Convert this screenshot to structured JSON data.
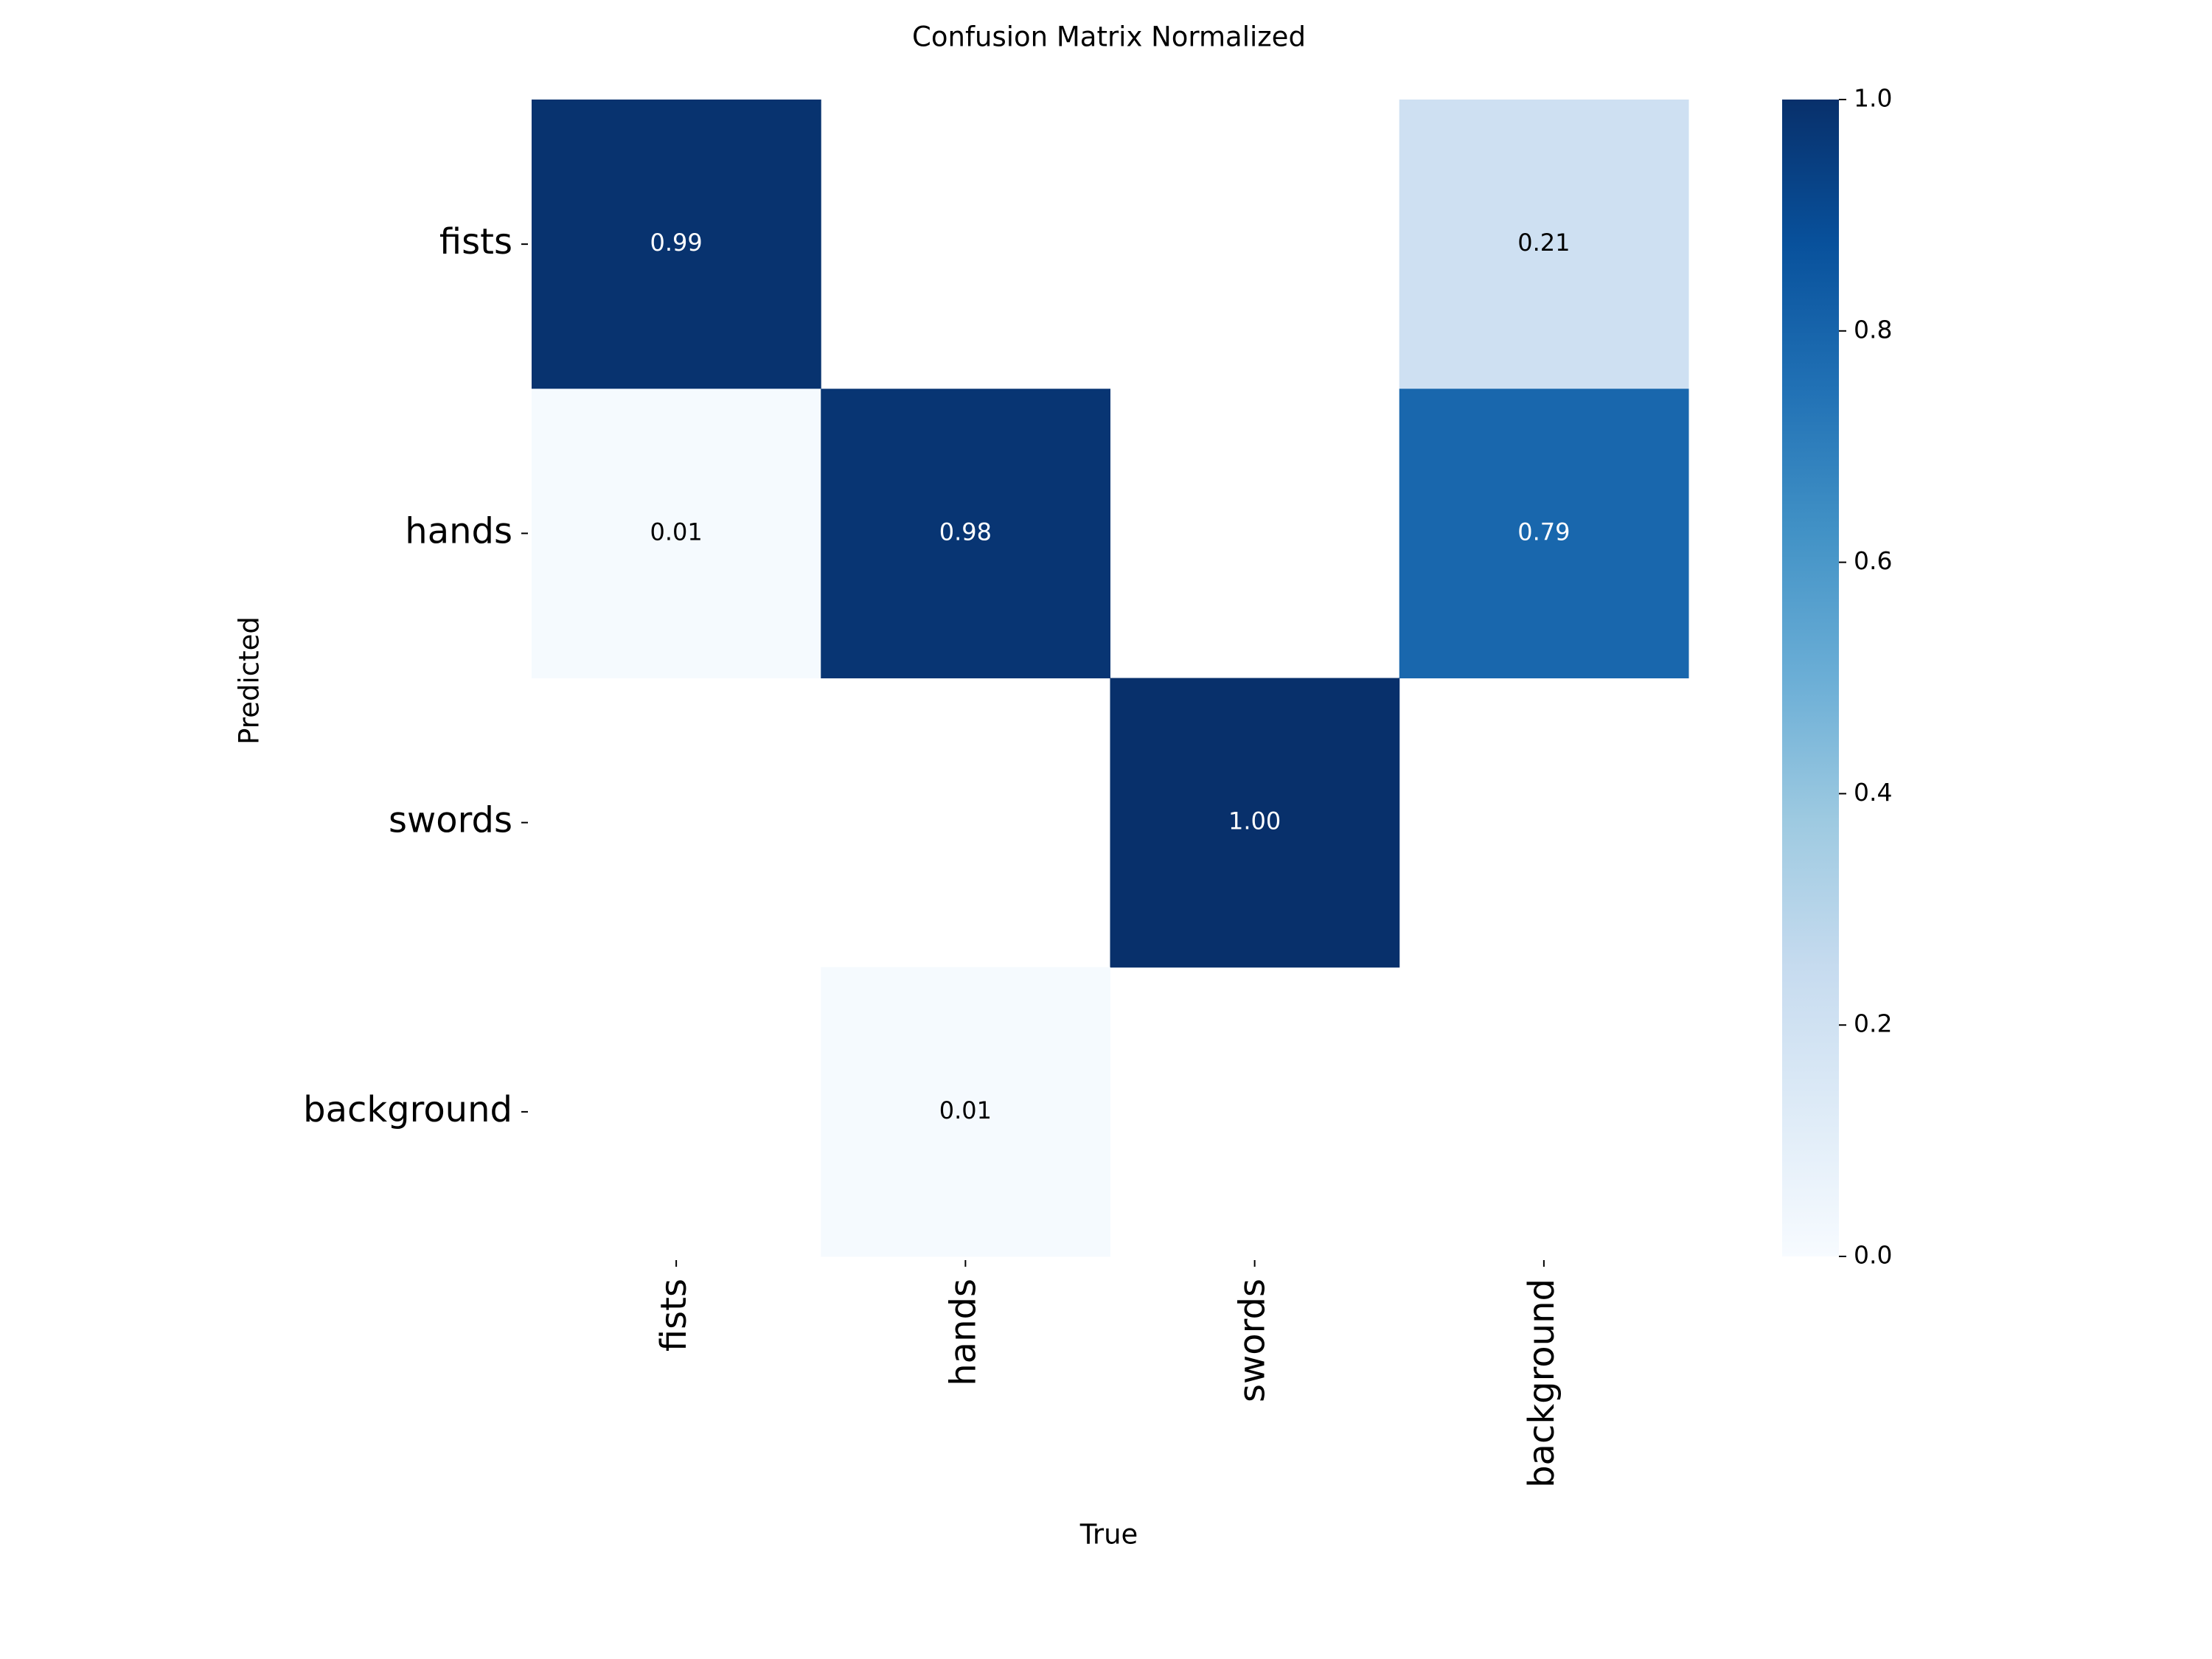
{
  "chart_data": {
    "type": "heatmap",
    "title": "Confusion Matrix Normalized",
    "xlabel": "True",
    "ylabel": "Predicted",
    "x_categories": [
      "fists",
      "hands",
      "swords",
      "background"
    ],
    "y_categories": [
      "fists",
      "hands",
      "swords",
      "background"
    ],
    "values": [
      [
        0.99,
        null,
        null,
        0.21
      ],
      [
        0.01,
        0.98,
        null,
        0.79
      ],
      [
        null,
        null,
        1,
        null
      ],
      [
        null,
        0.01,
        null,
        null
      ]
    ],
    "value_labels": [
      [
        "0.99",
        null,
        null,
        "0.21"
      ],
      [
        "0.01",
        "0.98",
        null,
        "0.79"
      ],
      [
        null,
        null,
        "1.00",
        null
      ],
      [
        null,
        "0.01",
        null,
        null
      ]
    ],
    "colormap": "Blues",
    "clim": [
      0,
      1
    ],
    "cticks": [
      {
        "value": 0,
        "label": "0.0"
      },
      0.2,
      0.4,
      0.6,
      0.8,
      {
        "value": 1,
        "label": "1.0"
      }
    ]
  }
}
